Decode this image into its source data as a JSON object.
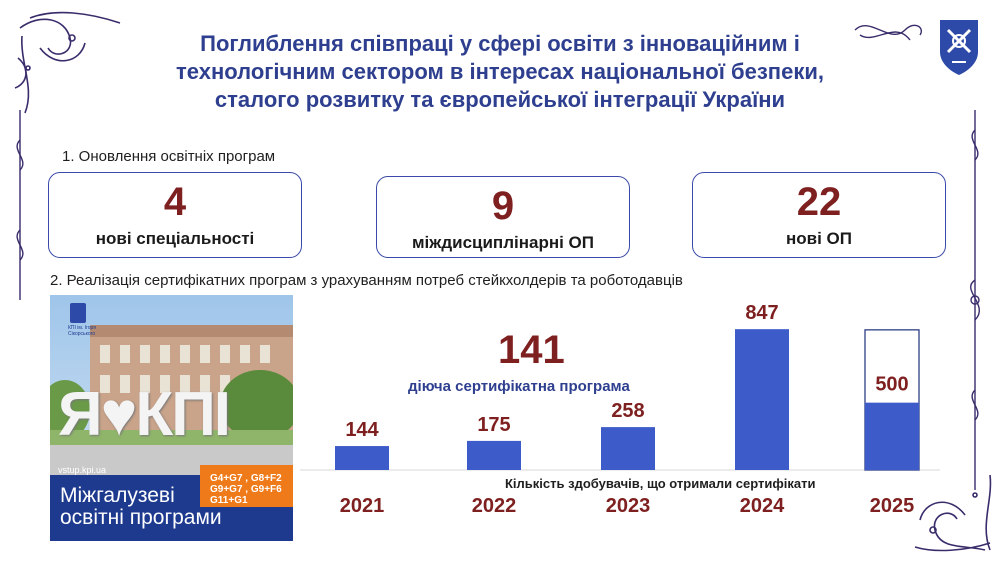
{
  "header": {
    "title_lines": [
      "Поглиблення співпраці у сфері освіти з інноваційним і",
      "технологічним сектором в інтересах національної безпеки,",
      "сталого розвитку та європейської інтеграції України"
    ]
  },
  "section1": {
    "label": "1. Оновлення освітніх програм",
    "cards": [
      {
        "number": "4",
        "label": "нові спеціальності"
      },
      {
        "number": "9",
        "label": "міждисциплінарні ОП"
      },
      {
        "number": "22",
        "label": "нові ОП"
      }
    ]
  },
  "section2": {
    "label": "2. Реалізація сертифікатних програм з урахуванням потреб стейкхолдерів та роботодавців"
  },
  "photo": {
    "logo_text": "КПІ ім. Ігоря Сікорського",
    "sign_text": "Я♥КПІ",
    "codes": [
      "G4+G7 , G8+F2",
      "G9+G7 , G9+F6",
      "G11+G1"
    ],
    "url": "vstup.kpi.ua",
    "banner_line1": "Міжгалузеві",
    "banner_line2": "освітні програми"
  },
  "highlight": {
    "number": "141",
    "label": "діюча сертифікатна програма"
  },
  "chart_data": {
    "type": "bar",
    "categories": [
      "2021",
      "2022",
      "2023",
      "2024",
      "2025"
    ],
    "values": [
      144,
      175,
      258,
      847,
      500
    ],
    "value_labels": [
      "144",
      "175",
      "258",
      "847",
      "500"
    ],
    "note": "Кількість здобувачів, що отримали сертифікати",
    "last_bar_outline_max": 860,
    "colors": {
      "bar": "#3d5bc9",
      "value": "#7f2020"
    }
  },
  "colors": {
    "title": "#2e3f8f",
    "accent": "#7f2020",
    "card_border": "#3b4aa8",
    "ornament": "#3a2c6b"
  }
}
